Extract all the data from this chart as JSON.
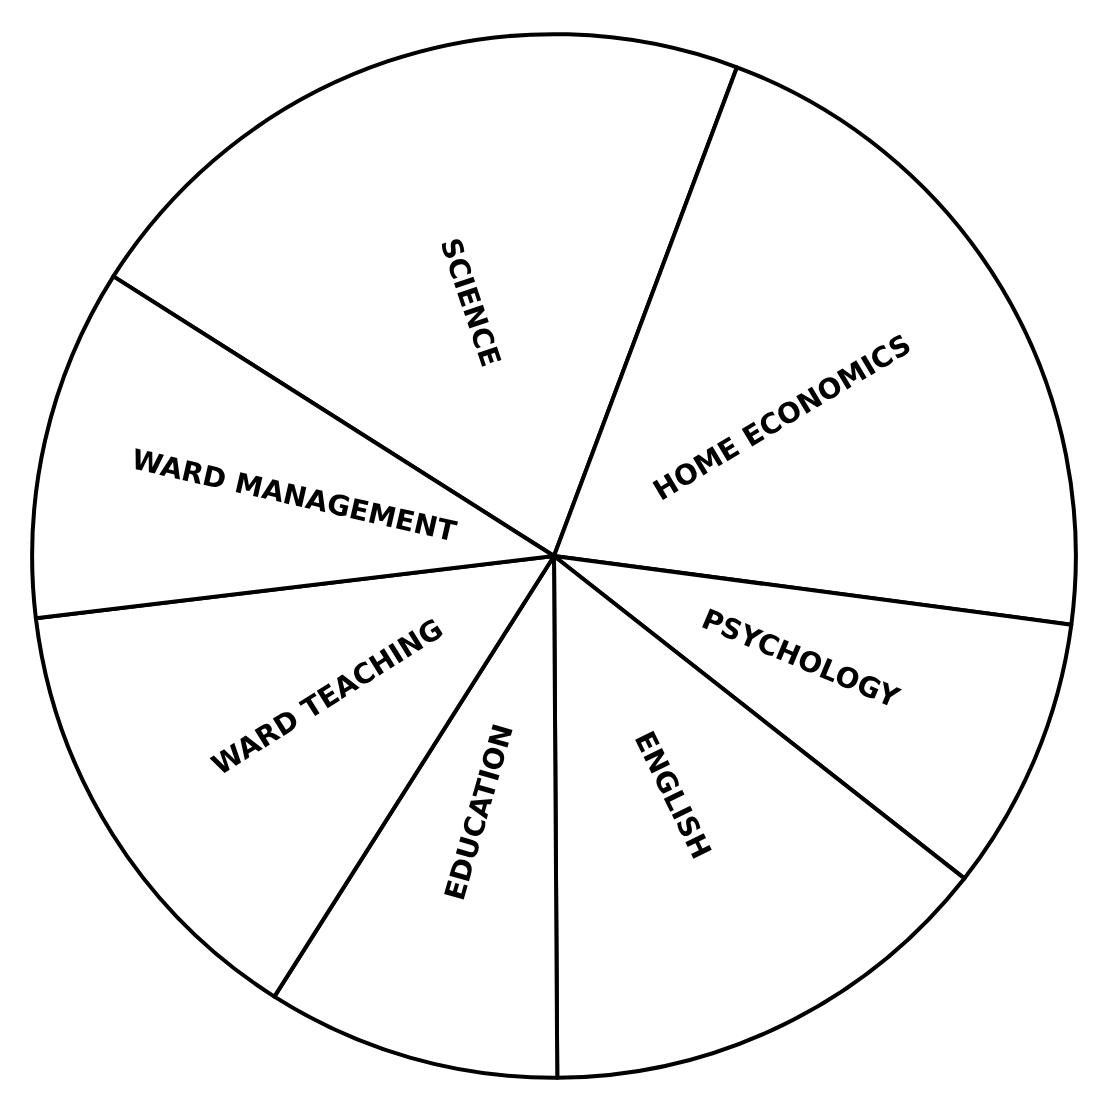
{
  "chart_data": {
    "type": "pie",
    "categories": [
      "SCIENCE",
      "HOME ECONOMICS",
      "PSYCHOLOGY",
      "ENGLISH",
      "EDUCATION",
      "WARD TEACHING",
      "WARD MANAGEMENT"
    ],
    "values": [
      21.7,
      21.4,
      8.5,
      14.3,
      9.1,
      14.1,
      10.9
    ],
    "colors": [
      "#ffffff",
      "#ffffff",
      "#ffffff",
      "#ffffff",
      "#ffffff",
      "#ffffff",
      "#ffffff"
    ],
    "legend": false
  }
}
